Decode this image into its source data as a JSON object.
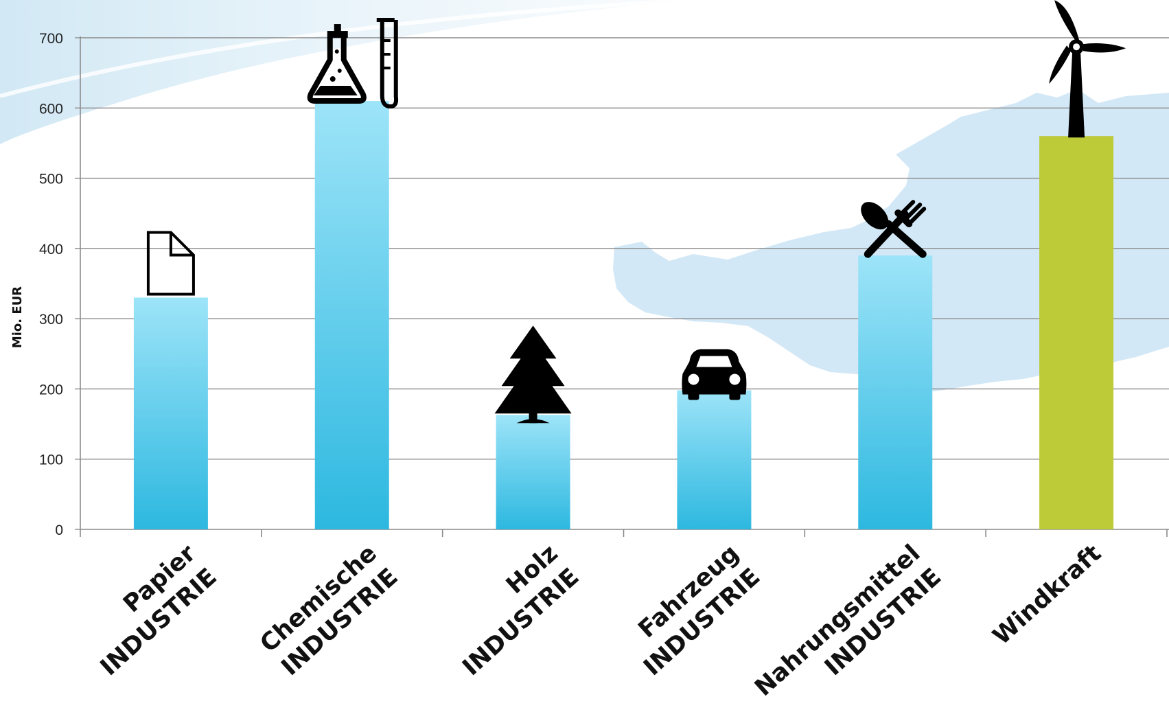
{
  "chart_data": {
    "type": "bar",
    "title": "",
    "ylabel": "Mio. EUR",
    "xlabel": "",
    "ylim": [
      0,
      700
    ],
    "yticks": [
      0,
      100,
      200,
      300,
      400,
      500,
      600,
      700
    ],
    "grid": true,
    "categories": [
      {
        "lines": [
          "Papier",
          "INDUSTRIE"
        ],
        "icon": "paper-icon"
      },
      {
        "lines": [
          "Chemische",
          "INDUSTRIE"
        ],
        "icon": "chemistry-flask-icon"
      },
      {
        "lines": [
          "Holz",
          "INDUSTRIE"
        ],
        "icon": "tree-icon"
      },
      {
        "lines": [
          "Fahrzeug",
          "INDUSTRIE"
        ],
        "icon": "car-icon"
      },
      {
        "lines": [
          "Nahrungsmittel",
          "INDUSTRIE"
        ],
        "icon": "fork-spoon-icon"
      },
      {
        "lines": [
          "Windkraft"
        ],
        "icon": "wind-turbine-icon"
      }
    ],
    "values": [
      330,
      610,
      163,
      198,
      390,
      560
    ],
    "colors": {
      "industry_top": "#9de4f8",
      "industry_bottom": "#2db8e0",
      "highlight": "#bccb37",
      "highlight_index": 5,
      "map_background": "#d3e8f6",
      "grid": "#8a8a8a",
      "icons": "#000000"
    }
  }
}
